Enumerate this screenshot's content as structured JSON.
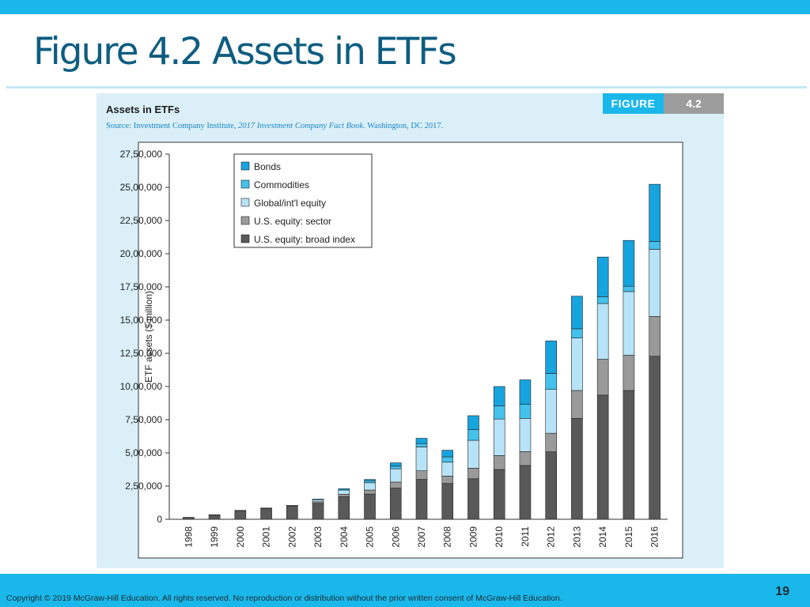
{
  "slide": {
    "title": "Figure 4.2 Assets in ETFs",
    "copyright": "Copyright © 2019 McGraw-Hill Education. All rights reserved. No reproduction or distribution without the prior written consent of McGraw-Hill Education.",
    "page_number": "19"
  },
  "figure": {
    "heading": "Assets in ETFs",
    "source_prefix": "Source: Investment Company Institute, ",
    "source_italic": "2017 Investment Company Fact Book.",
    "source_suffix": " Washington, DC 2017.",
    "badge_label": "FIGURE",
    "badge_number": "4.2"
  },
  "colors": {
    "accent": "#1ab7ea",
    "title": "#0e5d80",
    "panel": "#daeff8"
  },
  "chart_data": {
    "type": "bar",
    "stacked": true,
    "ylabel": "ETF assets ($ million)",
    "ylim": [
      0,
      2750000
    ],
    "yticks": [
      0,
      250000,
      500000,
      750000,
      1000000,
      1250000,
      1500000,
      1750000,
      2000000,
      2250000,
      2500000,
      2750000
    ],
    "ytick_labels": [
      "0",
      "2,50,000",
      "5,00,000",
      "7,50,000",
      "10,00,000",
      "12,50,000",
      "15,00,000",
      "17,50,000",
      "20,00,000",
      "22,50,000",
      "25,00,000",
      "27,50,000"
    ],
    "categories": [
      "1998",
      "1999",
      "2000",
      "2001",
      "2002",
      "2003",
      "2004",
      "2005",
      "2006",
      "2007",
      "2008",
      "2009",
      "2010",
      "2011",
      "2012",
      "2013",
      "2014",
      "2015",
      "2016"
    ],
    "legend_position": "top-left",
    "series": [
      {
        "name": "U.S. equity: broad index",
        "color": "#595959",
        "values": [
          15000,
          33000,
          65000,
          82000,
          100000,
          120000,
          170000,
          190000,
          235000,
          300000,
          270000,
          305000,
          375000,
          405000,
          508000,
          760000,
          935000,
          970000,
          1228000
        ]
      },
      {
        "name": "U.S. equity: sector",
        "color": "#9a9a9a",
        "values": [
          0,
          1000,
          2000,
          3000,
          5000,
          12000,
          18000,
          30000,
          45000,
          65000,
          55000,
          80000,
          105000,
          105000,
          140000,
          210000,
          270000,
          265000,
          300000
        ]
      },
      {
        "name": "Global/int'l equity",
        "color": "#b7e3f8",
        "values": [
          0,
          0,
          0,
          0,
          0,
          15000,
          32000,
          55000,
          100000,
          180000,
          105000,
          210000,
          275000,
          250000,
          330000,
          395000,
          420000,
          480000,
          505000
        ]
      },
      {
        "name": "Commodities",
        "color": "#44c1ec",
        "values": [
          0,
          0,
          0,
          0,
          0,
          0,
          0,
          15000,
          20000,
          25000,
          40000,
          80000,
          100000,
          105000,
          120000,
          70000,
          50000,
          40000,
          60000
        ]
      },
      {
        "name": "Bonds",
        "color": "#16a4de",
        "values": [
          0,
          0,
          0,
          0,
          0,
          5000,
          10000,
          10000,
          25000,
          40000,
          50000,
          105000,
          145000,
          185000,
          245000,
          245000,
          300000,
          345000,
          430000
        ]
      }
    ]
  }
}
